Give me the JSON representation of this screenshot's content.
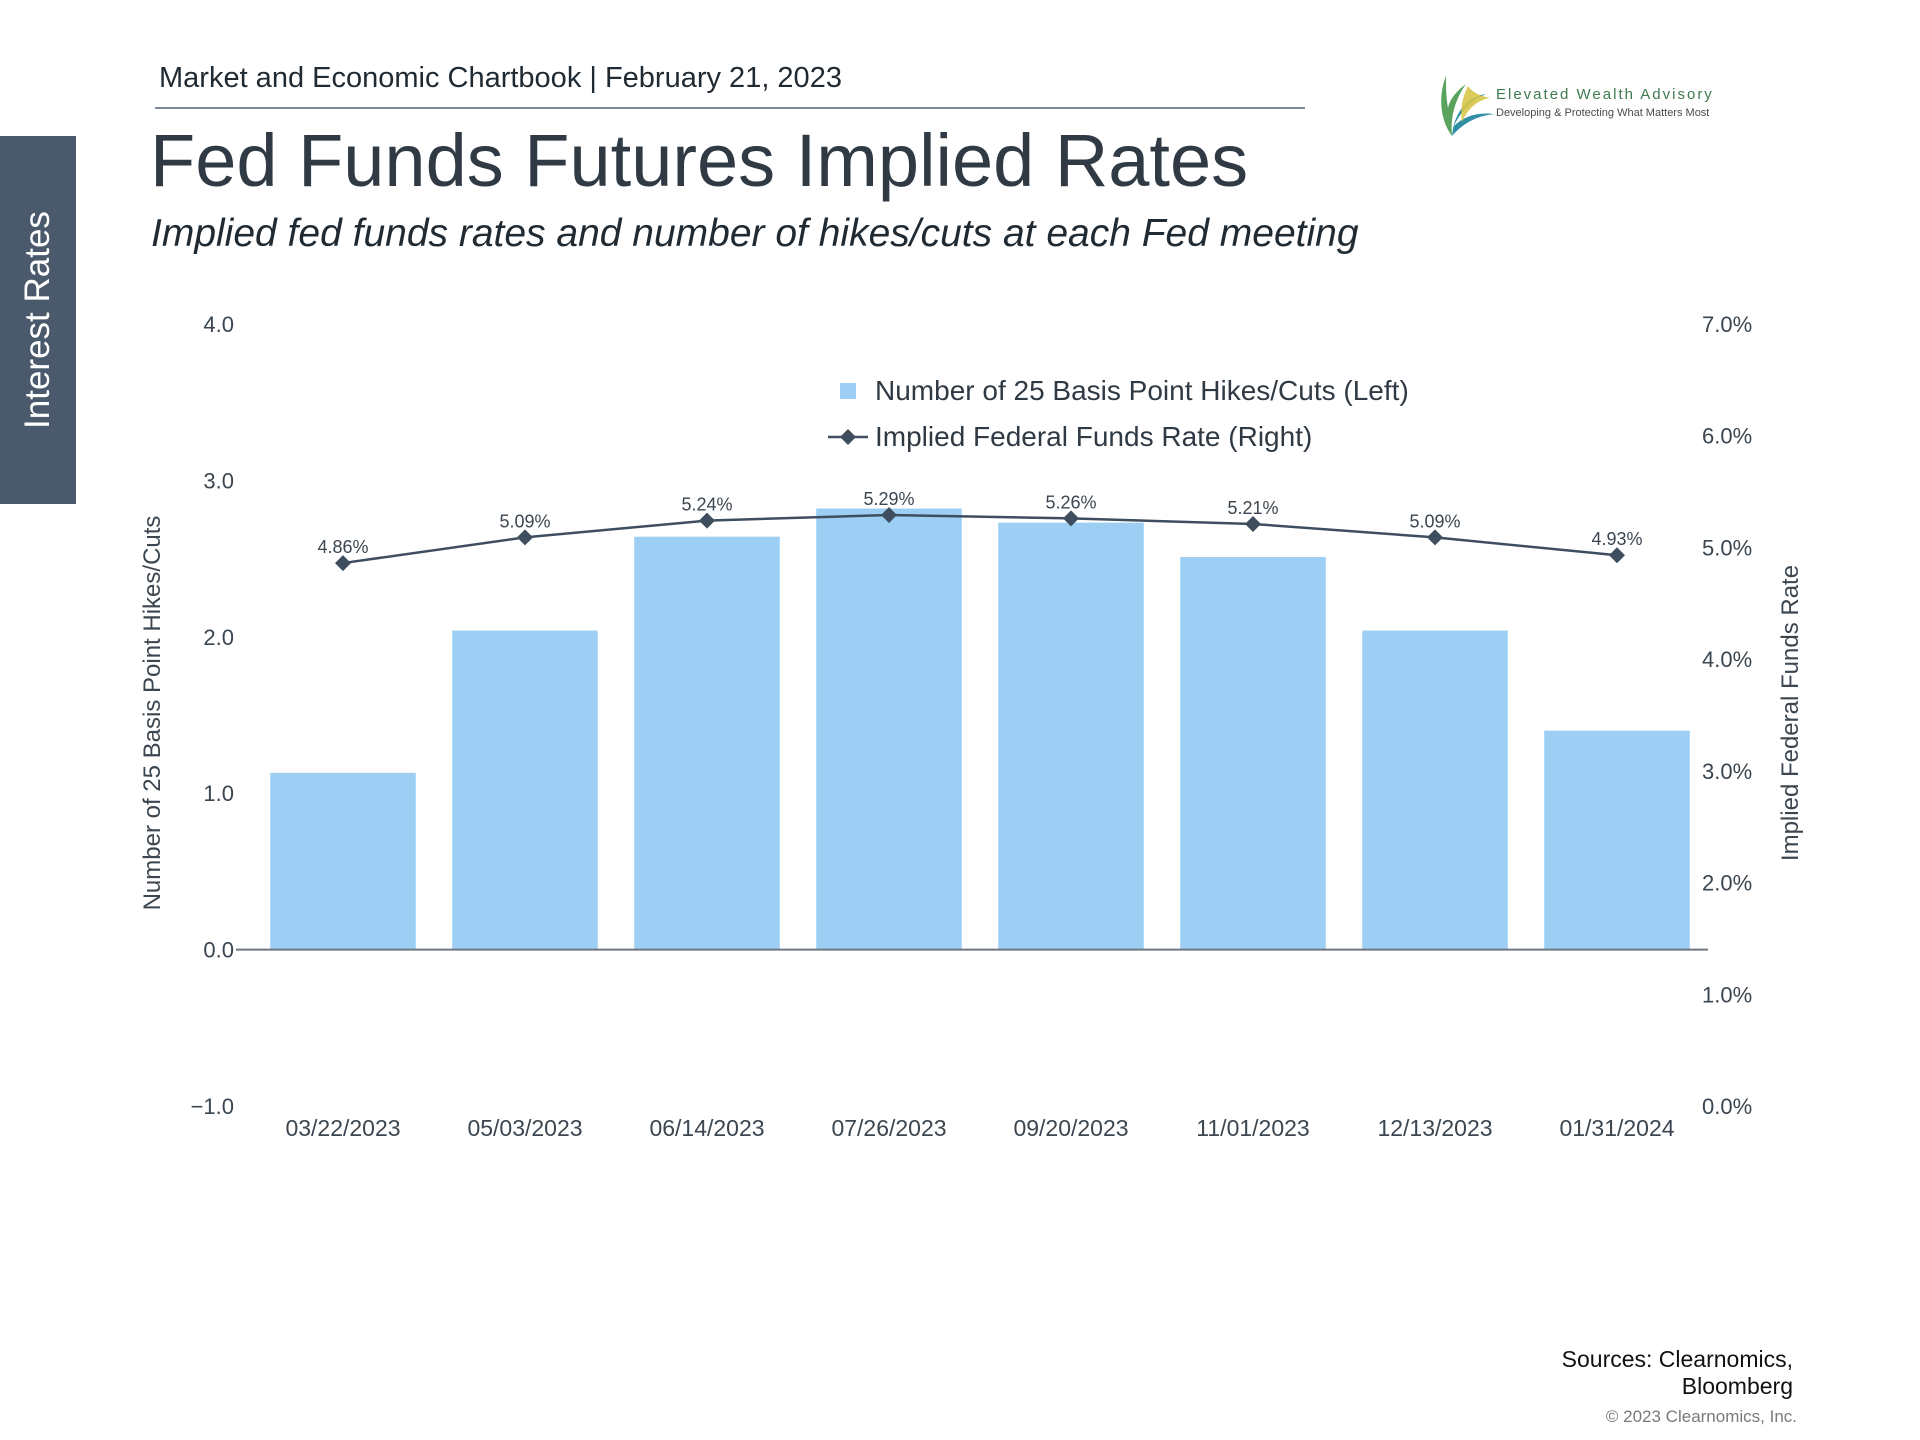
{
  "side_tab": {
    "label": "Interest Rates"
  },
  "header": {
    "line": "Market and Economic Chartbook | February 21, 2023",
    "title": "Fed Funds Futures Implied Rates",
    "subtitle": "Implied fed funds rates and number of hikes/cuts at each Fed meeting"
  },
  "logo": {
    "brand": "Elevated Wealth Advisory",
    "tagline": "Developing & Protecting What Matters Most"
  },
  "chart_data": {
    "type": "bar",
    "categories": [
      "03/22/2023",
      "05/03/2023",
      "06/14/2023",
      "07/26/2023",
      "09/20/2023",
      "11/01/2023",
      "12/13/2023",
      "01/31/2024"
    ],
    "series": [
      {
        "name": "Number of 25 Basis Point Hikes/Cuts (Left)",
        "type": "bar",
        "axis": "left",
        "color": "#9dcff5",
        "values": [
          1.13,
          2.04,
          2.64,
          2.82,
          2.73,
          2.51,
          2.04,
          1.4
        ]
      },
      {
        "name": "Implied Federal Funds Rate (Right)",
        "type": "line",
        "axis": "right",
        "color": "#3e4e5e",
        "values": [
          4.86,
          5.09,
          5.24,
          5.29,
          5.26,
          5.21,
          5.09,
          4.93
        ],
        "labels": [
          "4.86%",
          "5.09%",
          "5.24%",
          "5.29%",
          "5.26%",
          "5.21%",
          "5.09%",
          "4.93%"
        ]
      }
    ],
    "y_left": {
      "label": "Number of 25 Basis Point Hikes/Cuts",
      "lim": [
        -1,
        4
      ],
      "ticks": [
        -1,
        0,
        1,
        2,
        3,
        4
      ],
      "tick_labels": [
        "−1.0",
        "0.0",
        "1.0",
        "2.0",
        "3.0",
        "4.0"
      ]
    },
    "y_right": {
      "label": "Implied Federal Funds Rate",
      "lim": [
        0,
        7
      ],
      "ticks": [
        0,
        1,
        2,
        3,
        4,
        5,
        6,
        7
      ],
      "tick_labels": [
        "0.0%",
        "1.0%",
        "2.0%",
        "3.0%",
        "4.0%",
        "5.0%",
        "6.0%",
        "7.0%"
      ]
    },
    "grid": false,
    "legend": "top-center"
  },
  "footer": {
    "sources_line1": "Sources: Clearnomics,",
    "sources_line2": "Bloomberg",
    "copyright": "© 2023 Clearnomics, Inc."
  }
}
